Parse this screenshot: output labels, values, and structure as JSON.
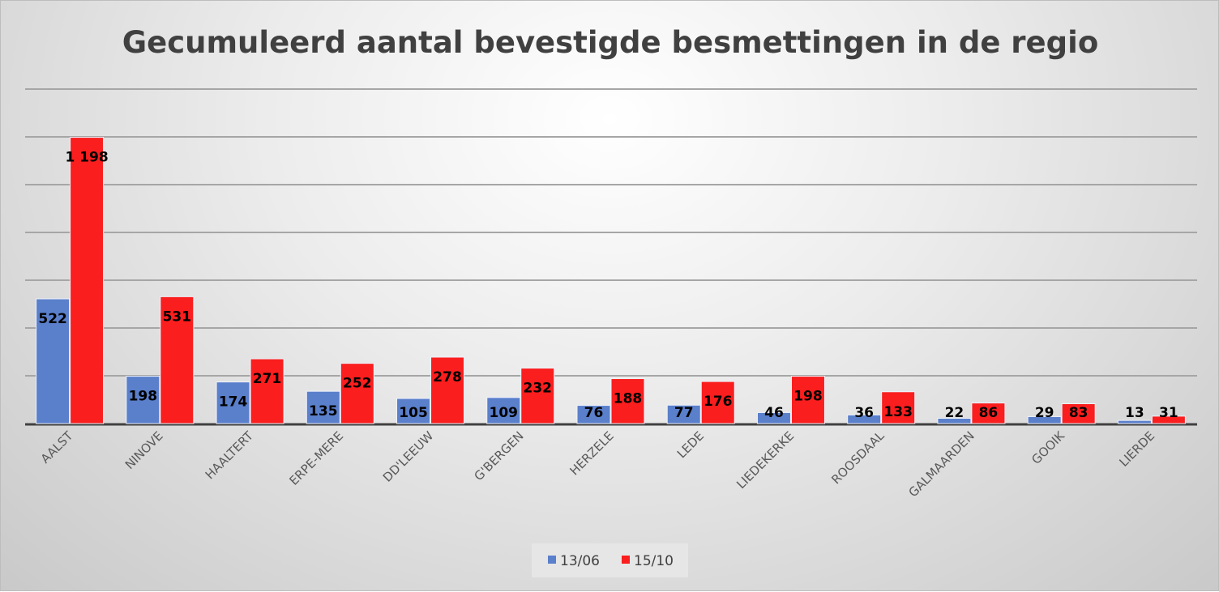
{
  "chart_data": {
    "type": "bar",
    "title": "Gecumuleerd aantal bevestigde besmettingen in de regio",
    "xlabel": "",
    "ylabel": "",
    "ylim": [
      0,
      1400
    ],
    "ygrid_step": 200,
    "grid": true,
    "legend_position": "bottom",
    "categories": [
      "AALST",
      "NINOVE",
      "HAALTERT",
      "ERPE-MERE",
      "DD'LEEUW",
      "G'BERGEN",
      "HERZELE",
      "LEDE",
      "LIEDEKERKE",
      "ROOSDAAL",
      "GALMAARDEN",
      "GOOIK",
      "LIERDE"
    ],
    "series": [
      {
        "name": "13/06",
        "color": "#5a7fcb",
        "values": [
          522,
          198,
          174,
          135,
          105,
          109,
          76,
          77,
          46,
          36,
          22,
          29,
          13
        ],
        "labels": [
          "522",
          "198",
          "174",
          "135",
          "105",
          "109",
          "76",
          "77",
          "46",
          "36",
          "22",
          "29",
          "13"
        ]
      },
      {
        "name": "15/10",
        "color": "#fa1e1e",
        "values": [
          1198,
          531,
          271,
          252,
          278,
          232,
          188,
          176,
          198,
          133,
          86,
          83,
          31
        ],
        "labels": [
          "1 198",
          "531",
          "271",
          "252",
          "278",
          "232",
          "188",
          "176",
          "198",
          "133",
          "86",
          "83",
          "31"
        ]
      }
    ]
  }
}
